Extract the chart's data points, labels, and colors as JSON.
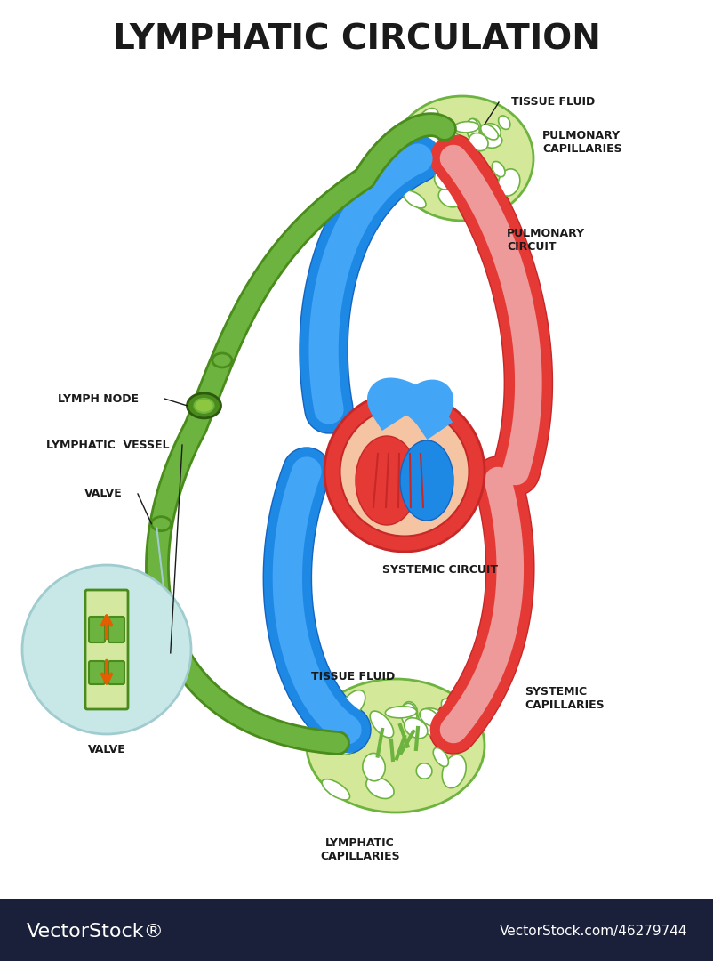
{
  "title": "LYMPHATIC CIRCULATION",
  "title_fontsize": 28,
  "title_font": "sans-serif",
  "bg_color": "#ffffff",
  "footer_color": "#1a1f3a",
  "footer_text_left": "VectorStock®",
  "footer_text_right": "VectorStock.com/46279744",
  "colors": {
    "green_dark": "#4a8c1c",
    "green_med": "#6db33f",
    "green_light": "#8dc63f",
    "green_tissue": "#b5d96b",
    "green_vessel": "#5ba322",
    "blue_dark": "#1565c0",
    "blue_med": "#1e88e5",
    "blue_light": "#42a5f5",
    "red_dark": "#c62828",
    "red_med": "#e53935",
    "red_light": "#ef9a9a",
    "heart_fill": "#f5c5a3",
    "yellow_arrow": "#f5d020",
    "black": "#1a1a1a",
    "white": "#ffffff",
    "tissue_network": "#d4e89a",
    "inset_bg": "#c8e8e8",
    "valve_green": "#4a8c1c"
  },
  "labels": {
    "tissue_fluid_top": "TISSUE FLUID",
    "pulmonary_capillaries": "PULMONARY\nCAPILLARIES",
    "pulmonary_circuit": "PULMONARY\nCIRCUIT",
    "lymph_node": "LYMPH NODE",
    "lymphatic_vessel": "LYMPHATIC  VESSEL",
    "valve_label": "VALVE",
    "valve_bottom": "VALVE",
    "systemic_circuit": "SYSTEMIC CIRCUIT",
    "tissue_fluid_bottom": "TISSUE FLUID",
    "systemic_capillaries": "SYSTEMIC\nCAPILLARIES",
    "lymphatic_capillaries": "LYMPHATIC\nCAPILLARIES"
  },
  "label_fontsize": 9,
  "label_fontsize_small": 8
}
